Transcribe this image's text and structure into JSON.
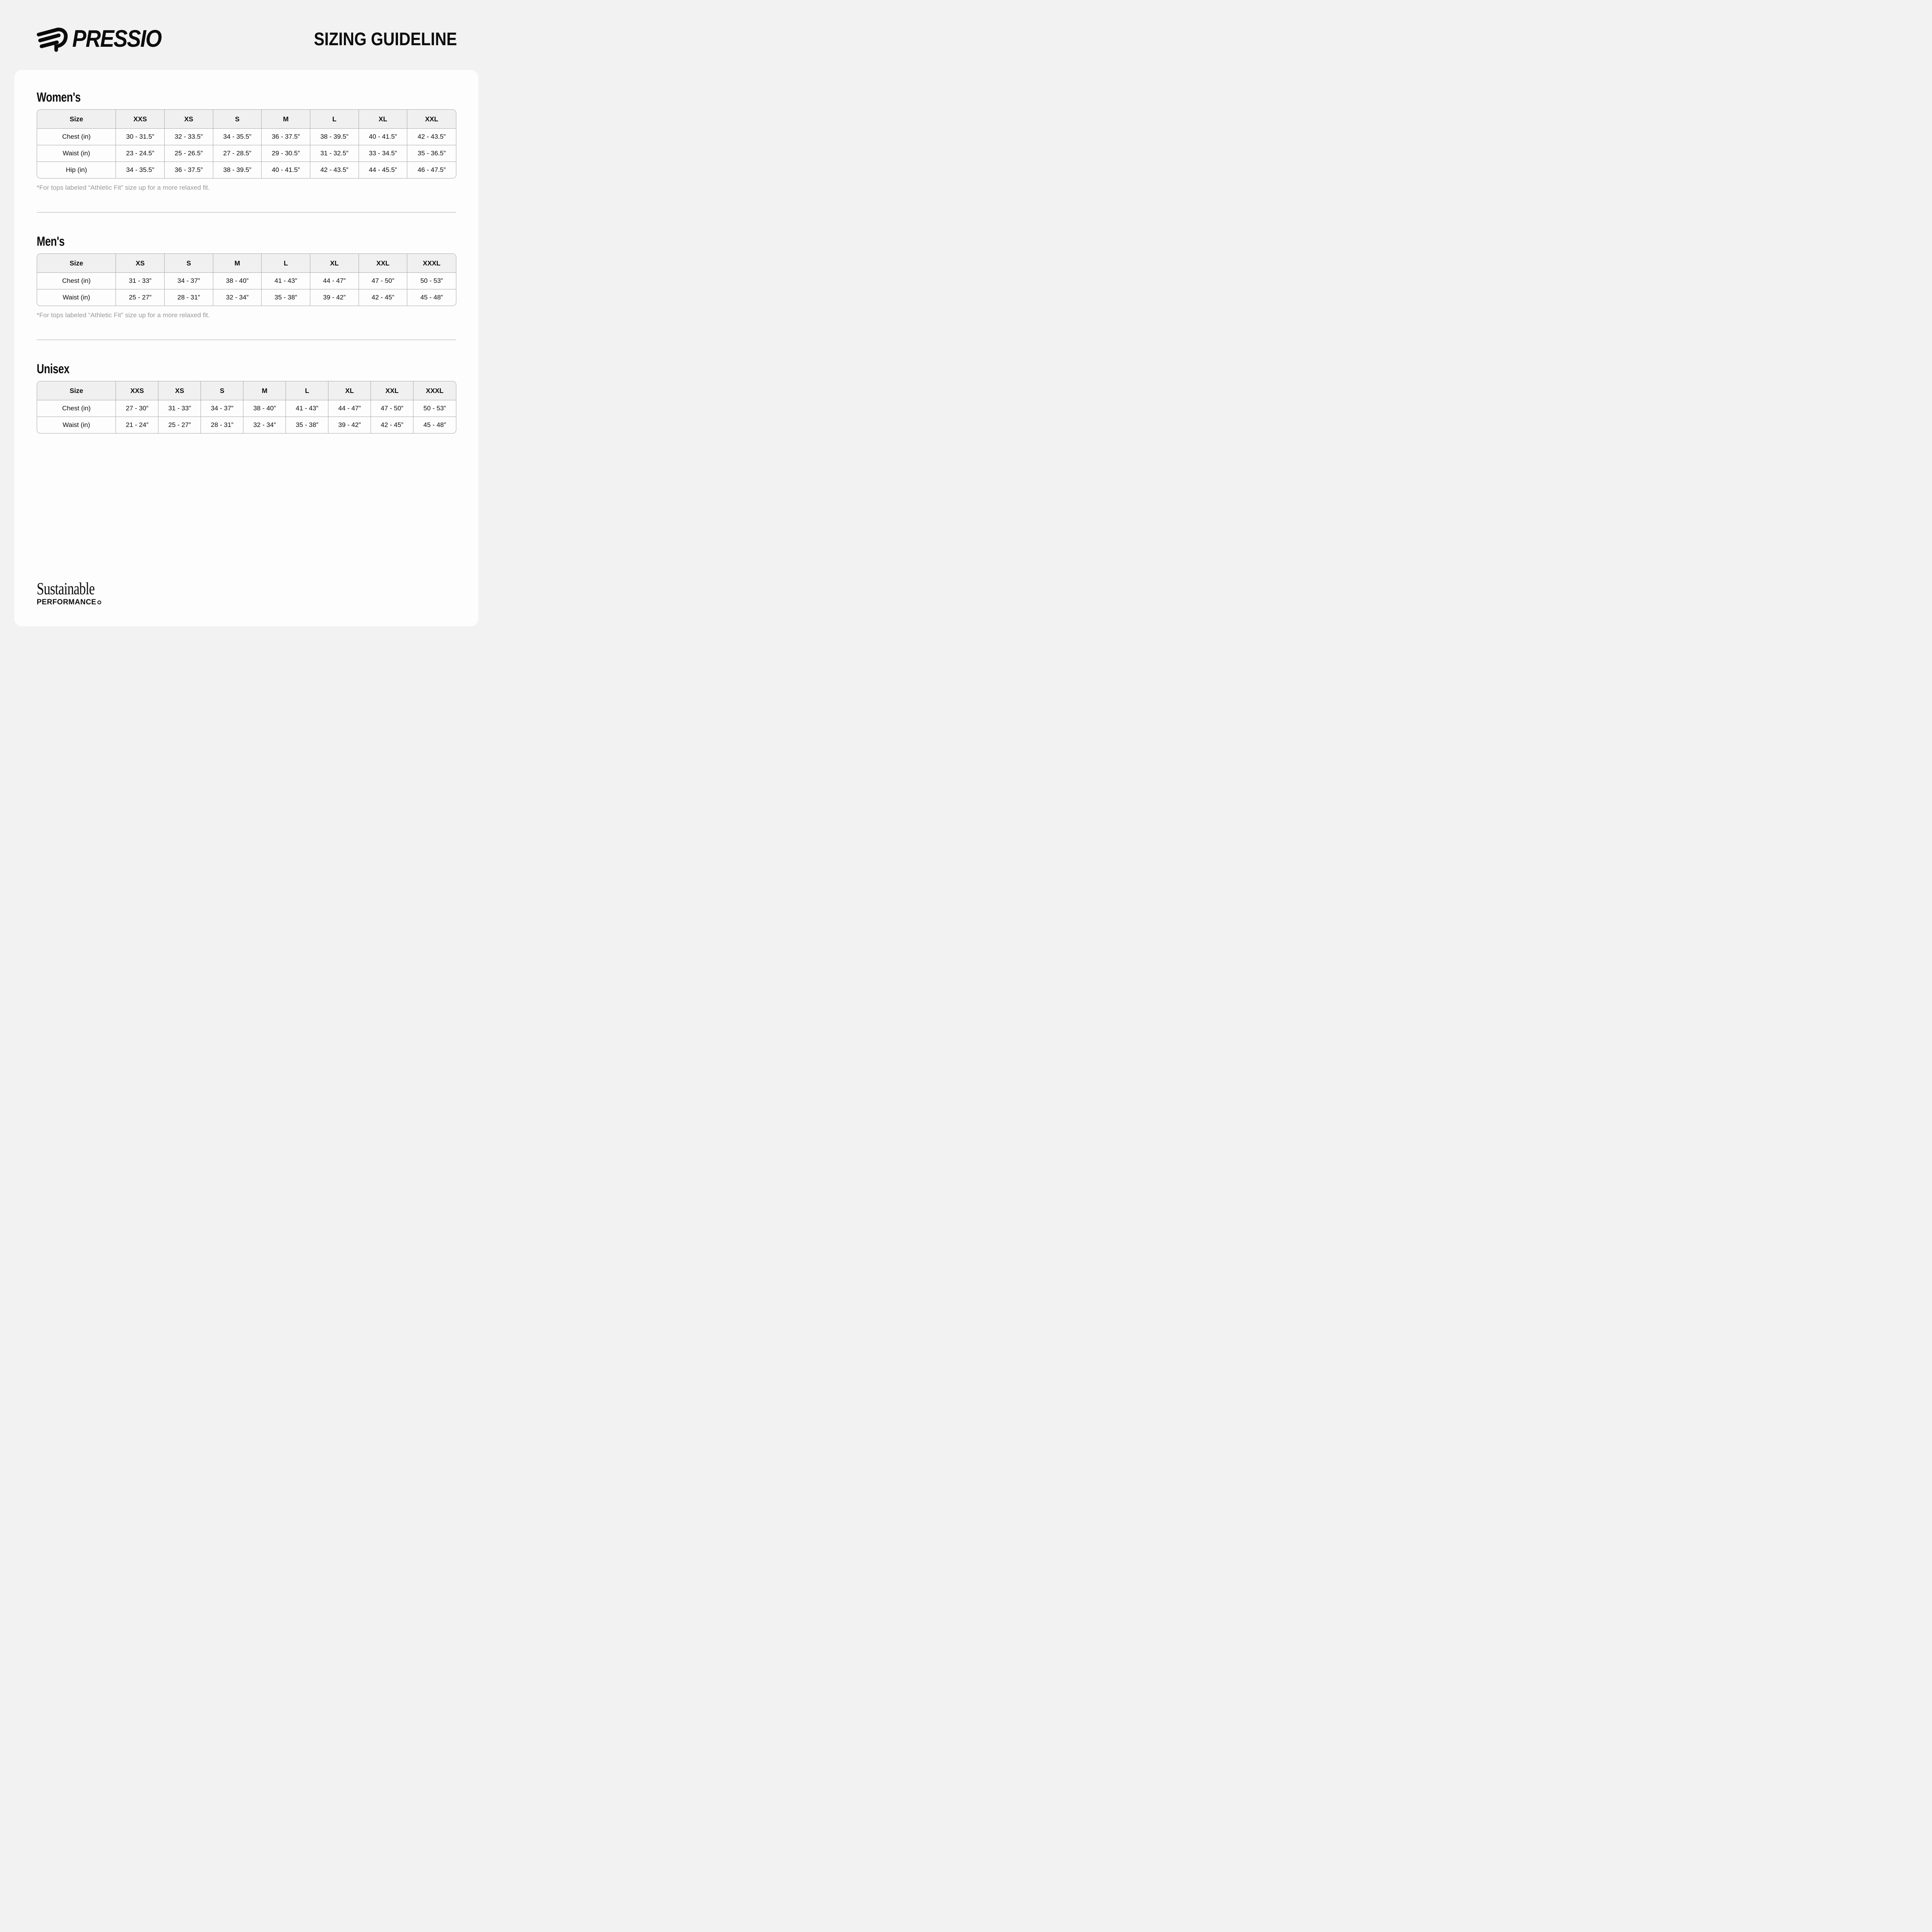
{
  "header": {
    "brand": "PRESSIO",
    "title": "SIZING GUIDELINE"
  },
  "sections": [
    {
      "title": "Women's",
      "columns": [
        "Size",
        "XXS",
        "XS",
        "S",
        "M",
        "L",
        "XL",
        "XXL"
      ],
      "rows": [
        {
          "label": "Chest (in)",
          "values": [
            "30 - 31.5”",
            "32 - 33.5”",
            "34 - 35.5”",
            "36 - 37.5”",
            "38 - 39.5”",
            "40 - 41.5”",
            "42 - 43.5”"
          ]
        },
        {
          "label": "Waist (in)",
          "values": [
            "23 - 24.5”",
            "25 - 26.5”",
            "27 - 28.5”",
            "29 - 30.5”",
            "31 - 32.5”",
            "33 - 34.5”",
            "35 - 36.5”"
          ]
        },
        {
          "label": "Hip (in)",
          "values": [
            "34 - 35.5”",
            "36 - 37.5”",
            "38 - 39.5”",
            "40 - 41.5”",
            "42 - 43.5”",
            "44 - 45.5”",
            "46 - 47.5”"
          ]
        }
      ],
      "footnote": "*For tops labeled “Athletic Fit” size up for a more relaxed fit."
    },
    {
      "title": "Men's",
      "columns": [
        "Size",
        "XS",
        "S",
        "M",
        "L",
        "XL",
        "XXL",
        "XXXL"
      ],
      "rows": [
        {
          "label": "Chest (in)",
          "values": [
            "31 - 33”",
            "34 - 37”",
            "38 - 40”",
            "41 - 43”",
            "44 - 47”",
            "47 - 50”",
            "50 - 53”"
          ]
        },
        {
          "label": "Waist (in)",
          "values": [
            "25 - 27”",
            "28 - 31”",
            "32 - 34”",
            "35 - 38”",
            "39 - 42”",
            "42 - 45”",
            "45 - 48”"
          ]
        }
      ],
      "footnote": "*For tops labeled “Athletic Fit” size up for a more relaxed fit."
    },
    {
      "title": "Unisex",
      "columns": [
        "Size",
        "XXS",
        "XS",
        "S",
        "M",
        "L",
        "XL",
        "XXL",
        "XXXL"
      ],
      "rows": [
        {
          "label": "Chest (in)",
          "values": [
            "27 - 30”",
            "31 - 33”",
            "34 - 37”",
            "38 - 40”",
            "41 - 43”",
            "44 - 47”",
            "47 - 50”",
            "50 - 53”"
          ]
        },
        {
          "label": "Waist (in)",
          "values": [
            "21 - 24”",
            "25 - 27”",
            "28 - 31”",
            "32 - 34”",
            "35 - 38”",
            "39 - 42”",
            "42 - 45”",
            "45 - 48”"
          ]
        }
      ],
      "footnote": ""
    }
  ],
  "footer": {
    "line1": "Sustainable",
    "line2": "PERFORMANCE"
  },
  "colors": {
    "page_bg": "#f2f2f3",
    "card_bg": "#fdfdfe",
    "table_header_bg": "#f0f0f1",
    "table_border": "#a8a8a8",
    "divider": "#ababab",
    "footnote_text": "#999999",
    "text": "#0d0d0d"
  }
}
